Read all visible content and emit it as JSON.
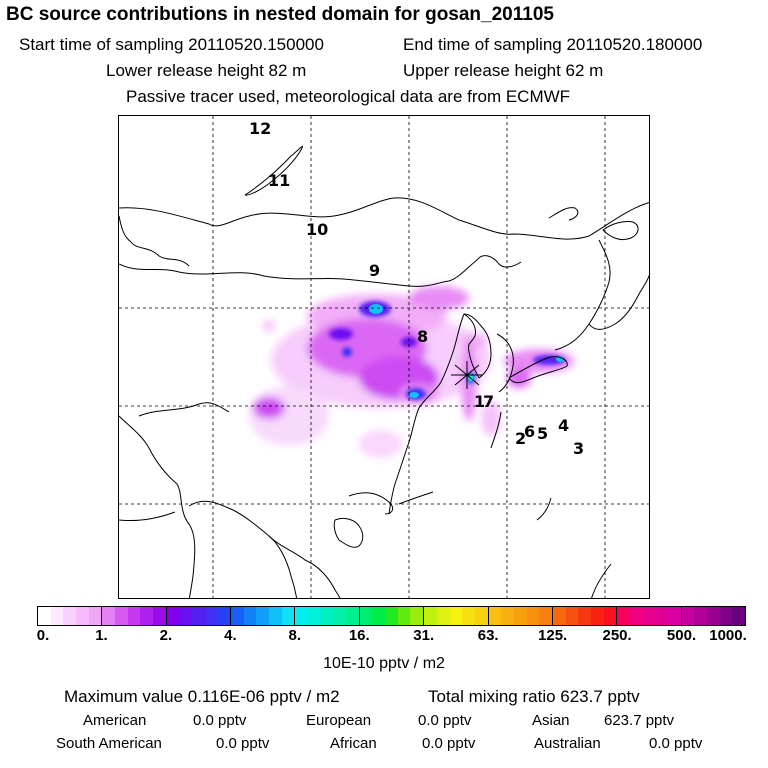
{
  "header": {
    "title": "BC  source contributions in nested domain for gosan_201105",
    "start_label": "Start time of sampling 20110520.150000",
    "end_label": "End time of sampling 20110520.180000",
    "lower_label": "Lower release height   82 m",
    "upper_label": "Upper release height   62 m",
    "tracer_label": "Passive tracer used, meteorological data are from ECMWF"
  },
  "map": {
    "trajectory_points": [
      "12",
      "11",
      "10",
      "9",
      "8",
      "7",
      "1",
      "2",
      "6",
      "5",
      "4",
      "3"
    ]
  },
  "colorbar": {
    "ticks": [
      "0.",
      "1.",
      "2.",
      "4.",
      "8.",
      "16.",
      "31.",
      "63.",
      "125.",
      "250.",
      "500.",
      "1000."
    ],
    "unit": "10E-10 pptv / m2",
    "colors": [
      [
        "#ffffff",
        "#fde8fe",
        "#f9d2fc",
        "#f5bbfa",
        "#f1a6f8"
      ],
      [
        "#e680f5",
        "#d858f3",
        "#c838f1",
        "#b020ee",
        "#9a0cec"
      ],
      [
        "#8000ee",
        "#6a10f0",
        "#5420f2",
        "#4030f4",
        "#2a40f6"
      ],
      [
        "#1860f8",
        "#1480f8",
        "#10a0f8",
        "#10c0f8",
        "#10e0f8"
      ],
      [
        "#00f0f0",
        "#00f0d8",
        "#00f0c0",
        "#00f0a8",
        "#00f090"
      ],
      [
        "#00ee70",
        "#00ec48",
        "#20ea20",
        "#60ec10",
        "#98ee10"
      ],
      [
        "#c0f010",
        "#e0f010",
        "#f8f010",
        "#f8e010",
        "#f8d010"
      ],
      [
        "#f8c010",
        "#f8b010",
        "#f8a010",
        "#f89010",
        "#f88010"
      ],
      [
        "#f86810",
        "#f85010",
        "#f83810",
        "#f82010",
        "#f81020"
      ],
      [
        "#f80060",
        "#f00080",
        "#e80090",
        "#e00098",
        "#d800a0"
      ],
      [
        "#c800a0",
        "#b00098",
        "#980090",
        "#800088",
        "#680080"
      ]
    ]
  },
  "summary": {
    "maximum": "Maximum value  0.116E-06 pptv / m2",
    "total": "Total mixing ratio      623.7 pptv",
    "american_label": "American",
    "american_value": "0.0 pptv",
    "european_label": "European",
    "european_value": "0.0 pptv",
    "asian_label": "Asian",
    "asian_value": "623.7 pptv",
    "south_american_label": "South American",
    "south_american_value": "0.0 pptv",
    "african_label": "African",
    "african_value": "0.0 pptv",
    "australian_label": "Australian",
    "australian_value": "0.0 pptv"
  }
}
